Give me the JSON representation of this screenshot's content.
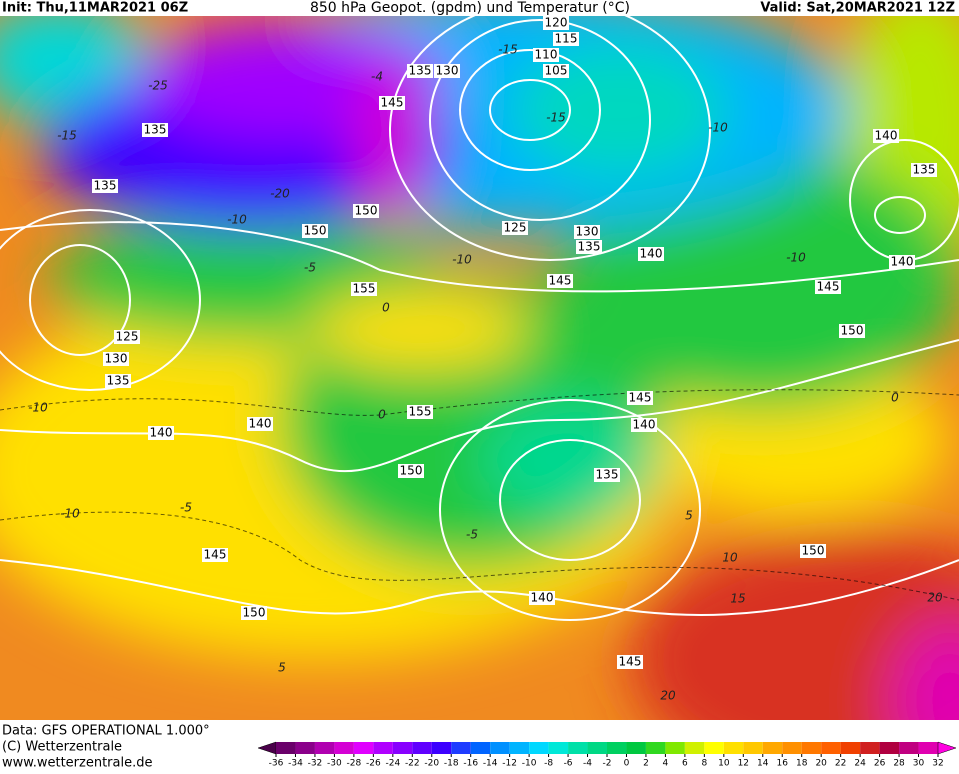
{
  "header": {
    "init": "Init: Thu,11MAR2021 06Z",
    "title": "850 hPa Geopot. (gpdm) und Temperatur (°C)",
    "valid": "Valid: Sat,20MAR2021 12Z"
  },
  "geopotential_labels": [
    "120",
    "115",
    "110",
    "105",
    "135",
    "130",
    "145",
    "135",
    "135",
    "150",
    "150",
    "125",
    "130",
    "135",
    "140",
    "145",
    "155",
    "140",
    "135",
    "140",
    "145",
    "150",
    "125",
    "130",
    "135",
    "155",
    "145",
    "140",
    "140",
    "140",
    "150",
    "135",
    "145",
    "150",
    "140",
    "150",
    "145"
  ],
  "temperature_labels": [
    "-25",
    "-15",
    "-15",
    "-15",
    "-10",
    "-20",
    "-10",
    "-10",
    "-5",
    "0",
    "-10",
    "0",
    "0",
    "-10",
    "-5",
    "-10",
    "5",
    "-5",
    "5",
    "10",
    "15",
    "20",
    "20",
    "-4"
  ],
  "footer": {
    "data": "Data: GFS OPERATIONAL 1.000°",
    "copyright": "(C) Wetterzentrale",
    "url": "www.wetterzentrale.de"
  },
  "colorbar": {
    "labels": [
      -36,
      -34,
      -32,
      -30,
      -28,
      -26,
      -24,
      -22,
      -20,
      -18,
      -16,
      -14,
      -12,
      -10,
      -8,
      -6,
      -4,
      -2,
      0,
      2,
      4,
      6,
      8,
      10,
      12,
      14,
      16,
      18,
      20,
      22,
      24,
      26,
      28,
      30,
      32
    ],
    "colors": [
      "#4a004a",
      "#6a006a",
      "#8a008a",
      "#b000b0",
      "#d400d4",
      "#e000ff",
      "#b000ff",
      "#8800ff",
      "#6000ff",
      "#3c00ff",
      "#1e3cff",
      "#0064ff",
      "#0090ff",
      "#00b4ff",
      "#00d8ff",
      "#00e8d8",
      "#00e0a8",
      "#00d884",
      "#00d060",
      "#00c840",
      "#30d820",
      "#80e800",
      "#d0f000",
      "#ffff00",
      "#ffe000",
      "#ffc800",
      "#ffa800",
      "#ff9000",
      "#ff7800",
      "#ff6000",
      "#f04000",
      "#d02020",
      "#b00040",
      "#c00080",
      "#e000b0",
      "#ff00e0"
    ]
  }
}
